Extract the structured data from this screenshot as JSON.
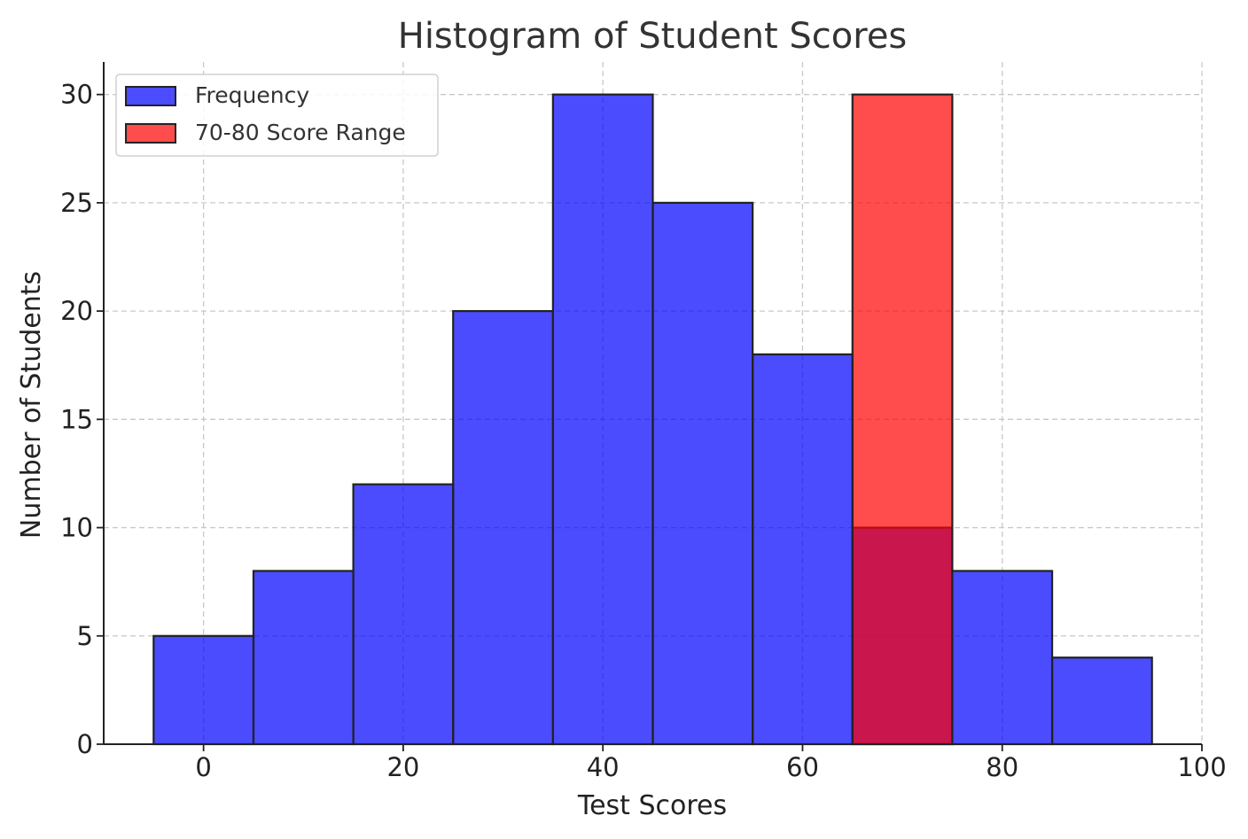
{
  "chart_data": {
    "type": "bar",
    "title": "Histogram of Student Scores",
    "xlabel": "Test Scores",
    "ylabel": "Number of Students",
    "xlim": [
      -10,
      100
    ],
    "ylim": [
      0,
      31.5
    ],
    "x_ticks": [
      0,
      20,
      40,
      60,
      80,
      100
    ],
    "y_ticks": [
      0,
      5,
      10,
      15,
      20,
      25,
      30
    ],
    "grid": true,
    "legend_position": "top-left",
    "bin_width": 10,
    "series": [
      {
        "name": "Frequency",
        "color": "#0000ff",
        "bin_centers": [
          0,
          10,
          20,
          30,
          40,
          50,
          60,
          70,
          80,
          90
        ],
        "values": [
          5,
          8,
          12,
          20,
          30,
          25,
          18,
          10,
          8,
          4
        ]
      },
      {
        "name": "70-80 Score Range",
        "color": "#ff0000",
        "bin_centers": [
          70
        ],
        "values": [
          30
        ]
      }
    ]
  }
}
